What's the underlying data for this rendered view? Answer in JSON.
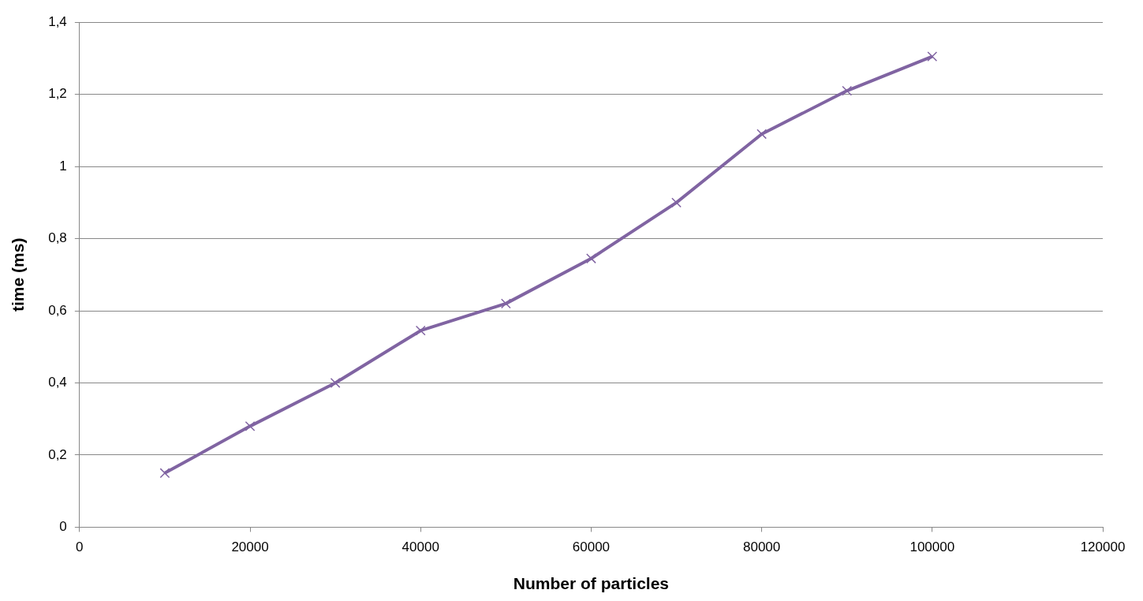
{
  "chart_data": {
    "type": "line",
    "xlabel": "Number of particles",
    "ylabel": "time (ms)",
    "x": [
      10000,
      20000,
      30000,
      40000,
      50000,
      60000,
      70000,
      80000,
      90000,
      100000
    ],
    "series": [
      {
        "color": "#8064a2",
        "values": [
          0.15,
          0.28,
          0.4,
          0.545,
          0.62,
          0.745,
          0.9,
          1.09,
          1.21,
          1.305
        ]
      }
    ],
    "xlim": [
      0,
      120000
    ],
    "xticks": [
      0,
      20000,
      40000,
      60000,
      80000,
      100000,
      120000
    ],
    "ylim": [
      0,
      1.4
    ],
    "yticks": [
      0,
      {
        "value": 0.2,
        "label": "0,2"
      },
      {
        "value": 0.4,
        "label": "0,4"
      },
      {
        "value": 0.6,
        "label": "0,6"
      },
      {
        "value": 0.8,
        "label": "0,8"
      },
      1,
      {
        "value": 1.2,
        "label": "1,2"
      },
      {
        "value": 1.4,
        "label": "1,4"
      }
    ],
    "grid": "y",
    "marker": "cross",
    "legend": false
  }
}
